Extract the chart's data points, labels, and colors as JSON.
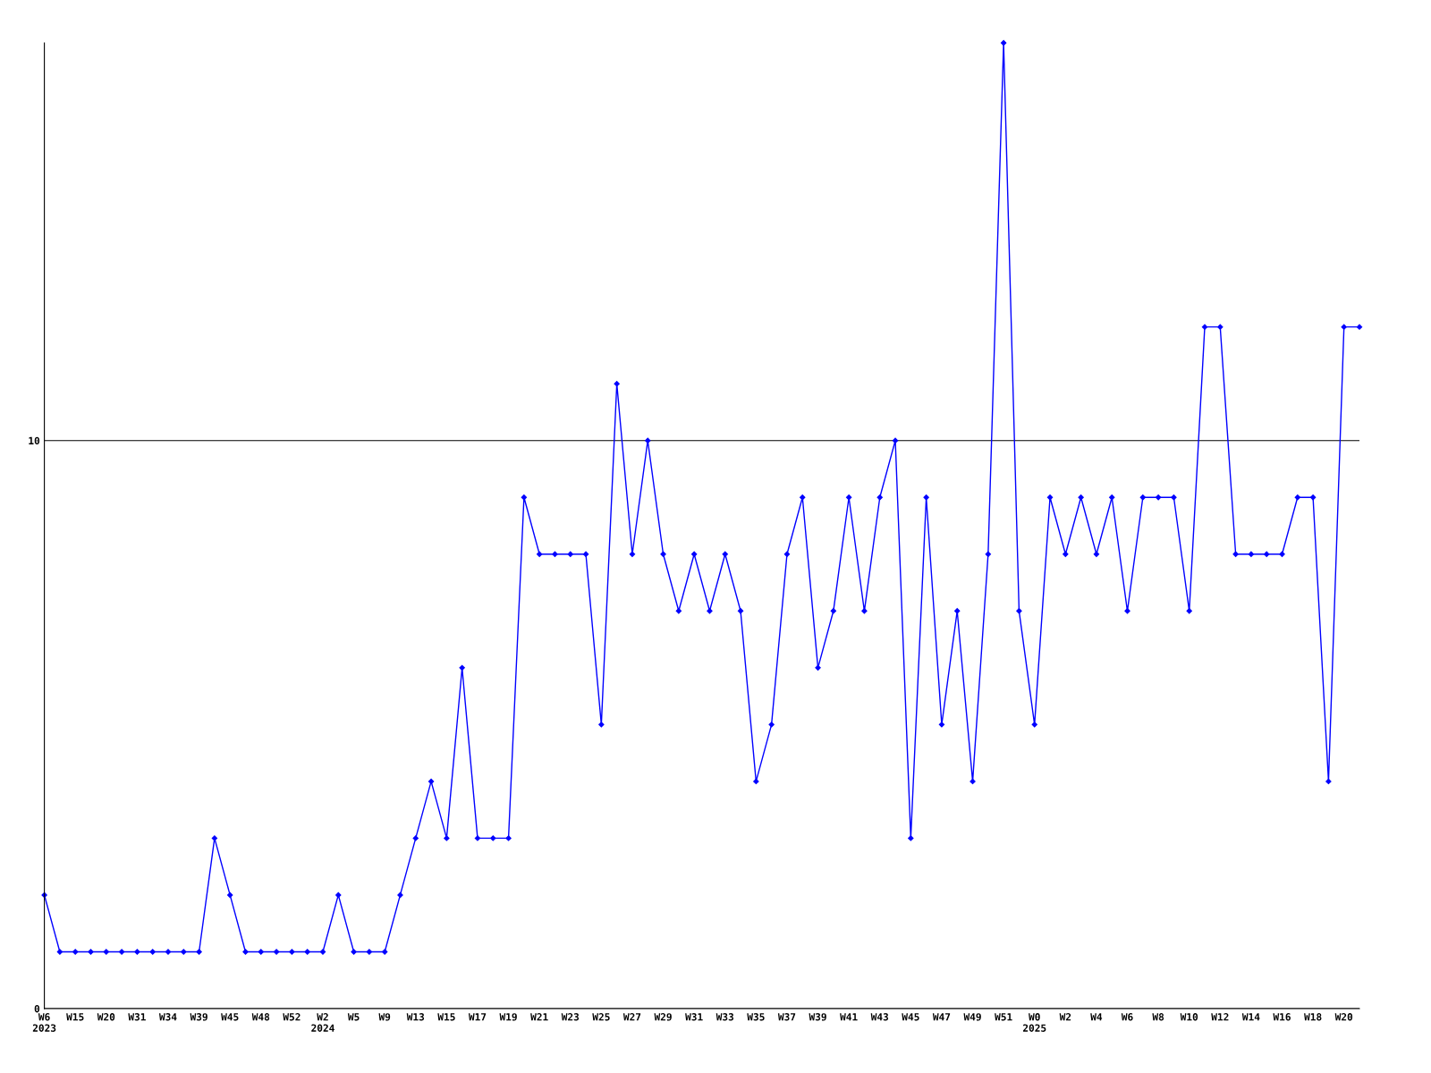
{
  "chart_data": {
    "type": "line",
    "categories": [
      "W6\n2023",
      null,
      "W15",
      null,
      "W20",
      null,
      "W31",
      null,
      "W34",
      null,
      "W39",
      null,
      "W45",
      null,
      "W48",
      null,
      "W52",
      null,
      "W2\n2024",
      null,
      "W5",
      null,
      "W9",
      null,
      "W13",
      null,
      "W15",
      null,
      "W17",
      null,
      "W19",
      null,
      "W21",
      null,
      "W23",
      null,
      "W25",
      null,
      "W27",
      null,
      "W29",
      null,
      "W31",
      null,
      "W33",
      null,
      "W35",
      null,
      "W37",
      null,
      "W39",
      null,
      "W41",
      null,
      "W43",
      null,
      "W45",
      null,
      "W47",
      null,
      "W49",
      null,
      "W51",
      null,
      "W0\n2025",
      null,
      "W2",
      null,
      "W4",
      null,
      "W6",
      null,
      "W8",
      null,
      "W10",
      null,
      "W12",
      null,
      "W14",
      null,
      "W16",
      null,
      "W18",
      null,
      "W20",
      null
    ],
    "series": [
      {
        "color": "#0000ff",
        "values": [
          2,
          1,
          1,
          1,
          1,
          1,
          1,
          1,
          1,
          1,
          1,
          3,
          2,
          1,
          1,
          1,
          1,
          1,
          1,
          2,
          1,
          1,
          1,
          2,
          3,
          4,
          3,
          6,
          3,
          3,
          3,
          9,
          8,
          8,
          8,
          8,
          5,
          11,
          8,
          10,
          8,
          7,
          8,
          7,
          8,
          7,
          4,
          5,
          8,
          9,
          6,
          7,
          9,
          7,
          9,
          10,
          3,
          9,
          5,
          7,
          4,
          8,
          17,
          7,
          5,
          9,
          8,
          9,
          8,
          9,
          7,
          9,
          9,
          9,
          7,
          12,
          12,
          8,
          8,
          8,
          8,
          9,
          9,
          4,
          12,
          12
        ]
      }
    ],
    "ylim": [
      0,
      17
    ],
    "yticks": [
      0,
      10
    ],
    "grid": "y",
    "marker": "diamond",
    "line_style": "solid"
  }
}
